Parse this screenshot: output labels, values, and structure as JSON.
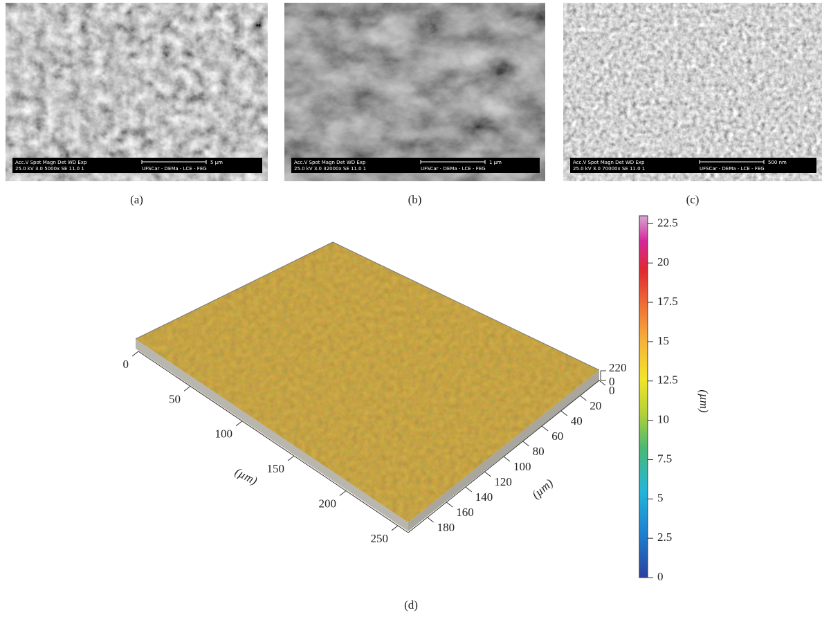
{
  "panels": [
    {
      "label": "(a)",
      "sem": {
        "header": "Acc.V  Spot Magn   Det  WD  Exp",
        "values": "25.0 kV 3.0  5000x  SE  11.0  1",
        "lab": "UFSCar - DEMa - LCE - FEG",
        "scale": "5 µm"
      }
    },
    {
      "label": "(b)",
      "sem": {
        "header": "Acc.V  Spot Magn   Det  WD  Exp",
        "values": "25.0 kV 3.0  32000x  SE  11.0  1",
        "lab": "UFSCar - DEMa - LCE - FEG",
        "scale": "1 µm"
      }
    },
    {
      "label": "(c)",
      "sem": {
        "header": "Acc.V  Spot Magn   Det  WD  Exp",
        "values": "25.0 kV 3.0  70000x  SE  11.0  1",
        "lab": "UFSCar - DEMa - LCE - FEG",
        "scale": "500 nm"
      }
    }
  ],
  "surface": {
    "label": "(d)",
    "x_axis": {
      "label": "(µm)",
      "lim": [
        0,
        260
      ],
      "ticks": [
        0,
        50,
        100,
        150,
        200,
        250
      ]
    },
    "y_axis": {
      "label": "(µm)",
      "lim": [
        0,
        200
      ],
      "ticks": [
        0,
        20,
        40,
        60,
        80,
        100,
        120,
        140,
        160,
        180
      ]
    },
    "z_axis": {
      "lim": [
        0,
        220
      ],
      "ticks": [
        0,
        220
      ]
    },
    "colorbar": {
      "label": "(µm)",
      "lim": [
        0,
        23
      ],
      "ticks": [
        0,
        2.5,
        5,
        7.5,
        10,
        12.5,
        15,
        17.5,
        20,
        22.5
      ]
    }
  }
}
